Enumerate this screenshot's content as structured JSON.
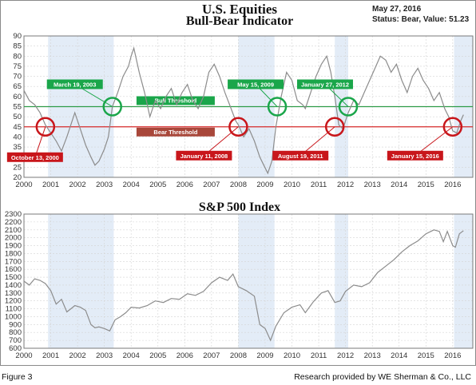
{
  "header": {
    "title_line1": "U.S. Equities",
    "title_line2": "Bull-Bear Indicator",
    "date": "May 27, 2016",
    "status": "Status: Bear, Value: 51.23"
  },
  "footer": {
    "figure_label": "Figure 3",
    "credit": "Research provided by WE Sherman & Co., LLC"
  },
  "colors": {
    "line": "#8c8c8c",
    "bull": "#2e9b47",
    "bear": "#d62a2a",
    "shade": "#e3ecf7",
    "green_label": "#1aa64a",
    "red_label": "#c8161b",
    "bear_band": "#a8473a"
  },
  "chart_data": [
    {
      "type": "line",
      "title": "",
      "xlabel": "",
      "ylabel": "",
      "xlim": [
        2000,
        2016.75
      ],
      "ylim": [
        20,
        90
      ],
      "x_ticks": [
        "2000",
        "2001",
        "2002",
        "2003",
        "2004",
        "2005",
        "2006",
        "2007",
        "2008",
        "2009",
        "2010",
        "2011",
        "2012",
        "2013",
        "2014",
        "2015",
        "2016"
      ],
      "y_ticks": [
        "20",
        "25",
        "30",
        "35",
        "40",
        "45",
        "50",
        "55",
        "60",
        "65",
        "70",
        "75",
        "80",
        "85",
        "90"
      ],
      "thresholds": [
        {
          "name": "Bull Threshold",
          "value": 55
        },
        {
          "name": "Bear Threshold",
          "value": 45
        }
      ],
      "shaded_periods": [
        [
          2000.9,
          2003.35
        ],
        [
          2008.0,
          2009.35
        ],
        [
          2011.6,
          2012.1
        ],
        [
          2016.05,
          2016.75
        ]
      ],
      "annotations": [
        {
          "label": "March 19, 2003",
          "x": 2003.3,
          "y": 55,
          "kind": "bull"
        },
        {
          "label": "May 15, 2009",
          "x": 2009.45,
          "y": 55,
          "kind": "bull"
        },
        {
          "label": "January 27, 2012",
          "x": 2012.1,
          "y": 55,
          "kind": "bull"
        },
        {
          "label": "October 13, 2000",
          "x": 2000.8,
          "y": 45,
          "kind": "bear"
        },
        {
          "label": "January 11, 2008",
          "x": 2008.0,
          "y": 45,
          "kind": "bear"
        },
        {
          "label": "August 19, 2011",
          "x": 2011.6,
          "y": 45,
          "kind": "bear"
        },
        {
          "label": "January 15, 2016",
          "x": 2016.0,
          "y": 45,
          "kind": "bear"
        }
      ],
      "series": [
        {
          "x": [
            2000.0,
            2000.2,
            2000.4,
            2000.6,
            2000.8,
            2001.0,
            2001.2,
            2001.4,
            2001.6,
            2001.75,
            2001.9,
            2002.1,
            2002.3,
            2002.5,
            2002.65,
            2002.8,
            2003.0,
            2003.15,
            2003.3,
            2003.5,
            2003.7,
            2003.9,
            2004.0,
            2004.1,
            2004.3,
            2004.5,
            2004.7,
            2004.9,
            2005.1,
            2005.3,
            2005.5,
            2005.7,
            2005.9,
            2006.1,
            2006.3,
            2006.5,
            2006.7,
            2006.9,
            2007.1,
            2007.3,
            2007.5,
            2007.7,
            2007.9,
            2008.0,
            2008.2,
            2008.4,
            2008.6,
            2008.8,
            2008.95,
            2009.1,
            2009.25,
            2009.4,
            2009.6,
            2009.8,
            2010.0,
            2010.2,
            2010.4,
            2010.5,
            2010.7,
            2010.9,
            2011.1,
            2011.3,
            2011.45,
            2011.6,
            2011.75,
            2011.9,
            2012.1,
            2012.3,
            2012.5,
            2012.7,
            2012.9,
            2013.1,
            2013.3,
            2013.5,
            2013.7,
            2013.9,
            2014.1,
            2014.3,
            2014.5,
            2014.7,
            2014.9,
            2015.1,
            2015.3,
            2015.5,
            2015.7,
            2015.85,
            2016.0,
            2016.15,
            2016.3,
            2016.4
          ],
          "y": [
            63,
            58,
            56,
            52,
            46,
            42,
            38,
            33,
            40,
            46,
            52,
            44,
            36,
            30,
            26,
            28,
            34,
            40,
            55,
            62,
            70,
            75,
            80,
            84,
            72,
            62,
            50,
            58,
            54,
            60,
            64,
            56,
            62,
            66,
            58,
            54,
            60,
            72,
            76,
            70,
            62,
            55,
            48,
            46,
            40,
            44,
            38,
            30,
            26,
            22,
            28,
            45,
            60,
            72,
            68,
            58,
            56,
            54,
            62,
            70,
            76,
            80,
            72,
            60,
            46,
            44,
            52,
            58,
            56,
            62,
            68,
            74,
            80,
            78,
            72,
            76,
            68,
            62,
            70,
            74,
            68,
            64,
            58,
            62,
            54,
            50,
            43,
            42,
            48,
            51
          ]
        }
      ]
    },
    {
      "type": "line",
      "title": "S&P 500 Index",
      "xlabel": "",
      "ylabel": "",
      "xlim": [
        2000,
        2016.75
      ],
      "ylim": [
        600,
        2300
      ],
      "x_ticks": [
        "2000",
        "2001",
        "2002",
        "2003",
        "2004",
        "2005",
        "2006",
        "2007",
        "2008",
        "2009",
        "2010",
        "2011",
        "2012",
        "2013",
        "2014",
        "2015",
        "2016"
      ],
      "y_ticks": [
        "600",
        "700",
        "800",
        "900",
        "1000",
        "1100",
        "1200",
        "1300",
        "1400",
        "1500",
        "1600",
        "1700",
        "1800",
        "1900",
        "2000",
        "2100",
        "2200",
        "2300"
      ],
      "shaded_periods": [
        [
          2000.9,
          2003.35
        ],
        [
          2008.0,
          2009.35
        ],
        [
          2011.6,
          2012.1
        ],
        [
          2016.05,
          2016.75
        ]
      ],
      "series": [
        {
          "x": [
            2000.0,
            2000.2,
            2000.4,
            2000.6,
            2000.8,
            2001.0,
            2001.2,
            2001.4,
            2001.6,
            2001.75,
            2001.9,
            2002.1,
            2002.3,
            2002.5,
            2002.65,
            2002.8,
            2003.0,
            2003.2,
            2003.4,
            2003.6,
            2003.8,
            2004.0,
            2004.3,
            2004.6,
            2004.9,
            2005.2,
            2005.5,
            2005.8,
            2006.1,
            2006.4,
            2006.7,
            2007.0,
            2007.3,
            2007.6,
            2007.8,
            2008.0,
            2008.3,
            2008.6,
            2008.8,
            2009.0,
            2009.2,
            2009.4,
            2009.7,
            2010.0,
            2010.3,
            2010.5,
            2010.8,
            2011.1,
            2011.35,
            2011.6,
            2011.8,
            2012.0,
            2012.3,
            2012.6,
            2012.9,
            2013.2,
            2013.5,
            2013.8,
            2014.1,
            2014.4,
            2014.7,
            2015.0,
            2015.3,
            2015.5,
            2015.65,
            2015.8,
            2016.0,
            2016.1,
            2016.25,
            2016.4
          ],
          "y": [
            1450,
            1400,
            1480,
            1460,
            1420,
            1330,
            1160,
            1220,
            1060,
            1100,
            1140,
            1120,
            1080,
            900,
            860,
            870,
            850,
            820,
            960,
            1000,
            1050,
            1120,
            1110,
            1140,
            1200,
            1180,
            1230,
            1220,
            1290,
            1270,
            1320,
            1430,
            1500,
            1460,
            1540,
            1380,
            1330,
            1260,
            900,
            850,
            700,
            880,
            1050,
            1120,
            1150,
            1050,
            1190,
            1300,
            1330,
            1180,
            1200,
            1320,
            1400,
            1380,
            1430,
            1560,
            1640,
            1720,
            1820,
            1900,
            1960,
            2050,
            2100,
            2080,
            1950,
            2080,
            1900,
            1880,
            2050,
            2090
          ]
        }
      ]
    }
  ]
}
